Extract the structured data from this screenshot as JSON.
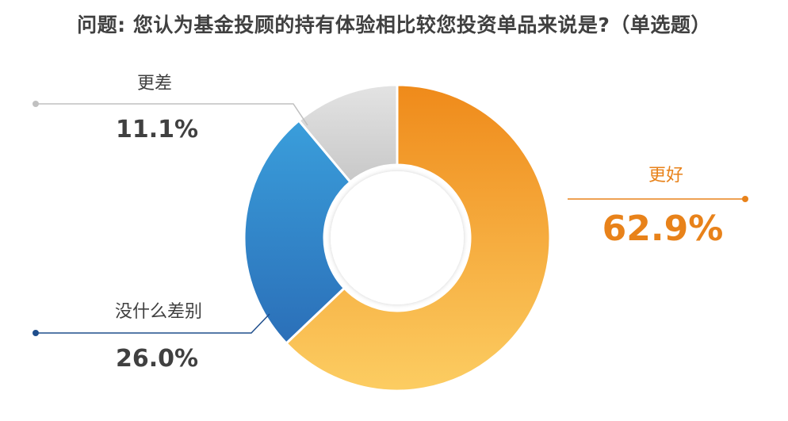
{
  "title": "问题: 您认为基金投顾的持有体验相比较您投资单品来说是?（单选题）",
  "chart_data": {
    "type": "pie",
    "variant": "donut",
    "title": "问题: 您认为基金投顾的持有体验相比较您投资单品来说是?（单选题）",
    "slices": [
      {
        "label": "更好",
        "value": 62.9,
        "value_label": "62.9%",
        "color_top": "#ef8a1a",
        "color_bottom": "#fccd62",
        "label_color": "#e8821a"
      },
      {
        "label": "没什么差别",
        "value": 26.0,
        "value_label": "26.0%",
        "color_top": "#3a9edb",
        "color_bottom": "#2b6fb8",
        "label_color": "#404040"
      },
      {
        "label": "更差",
        "value": 11.1,
        "value_label": "11.1%",
        "color_top": "#e3e3e3",
        "color_bottom": "#c8c8c8",
        "label_color": "#404040"
      }
    ],
    "colors": {
      "leader_good": "#e8821a",
      "leader_same": "#1f4e8c",
      "leader_worse": "#c0c0c0"
    }
  }
}
